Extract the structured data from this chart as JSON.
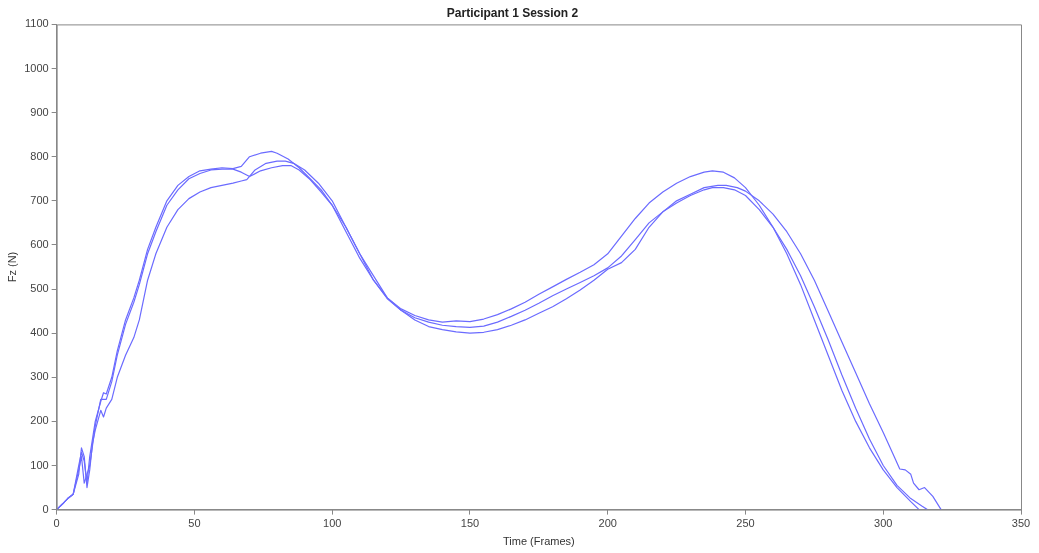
{
  "chart_data": {
    "type": "line",
    "title": "Participant 1 Session 2",
    "xlabel": "Time (Frames)",
    "ylabel": "Fz (N)",
    "xlim": [
      0,
      350
    ],
    "xticks": [
      0,
      50,
      100,
      150,
      200,
      250,
      300,
      350
    ],
    "ylim": [
      0,
      1100
    ],
    "yticks": [
      0,
      100,
      200,
      300,
      400,
      500,
      600,
      700,
      800,
      900,
      1000,
      1100
    ],
    "grid": false,
    "legend": false,
    "marker": "none",
    "line_style": "solid",
    "series": [
      {
        "color": "#6b6bff",
        "x": [
          0,
          2,
          4,
          6,
          8,
          9,
          10,
          11,
          12,
          14,
          16,
          17,
          18,
          20,
          22,
          25,
          28,
          30,
          33,
          36,
          40,
          44,
          48,
          52,
          56,
          60,
          64,
          67,
          70,
          74,
          78,
          80,
          84,
          88,
          92,
          96,
          100,
          105,
          110,
          115,
          120,
          125,
          130,
          135,
          140,
          145,
          150,
          155,
          160,
          165,
          170,
          175,
          180,
          185,
          190,
          195,
          200,
          205,
          210,
          215,
          220,
          225,
          230,
          235,
          238,
          242,
          246,
          250,
          255,
          260,
          265,
          270,
          275,
          280,
          285,
          290,
          295,
          300,
          305,
          310,
          313
        ],
        "values": [
          0,
          12,
          25,
          35,
          100,
          130,
          110,
          60,
          120,
          200,
          245,
          265,
          262,
          300,
          360,
          430,
          480,
          520,
          590,
          640,
          700,
          735,
          755,
          768,
          772,
          775,
          773,
          778,
          800,
          808,
          812,
          808,
          795,
          775,
          750,
          725,
          690,
          630,
          570,
          520,
          480,
          455,
          440,
          430,
          425,
          428,
          426,
          432,
          442,
          455,
          470,
          488,
          505,
          522,
          538,
          555,
          580,
          620,
          660,
          695,
          720,
          740,
          755,
          765,
          768,
          765,
          752,
          730,
          690,
          640,
          580,
          510,
          430,
          350,
          270,
          200,
          140,
          90,
          50,
          18,
          0
        ]
      },
      {
        "color": "#6b6bff",
        "x": [
          0,
          2,
          4,
          6,
          8,
          9,
          10,
          11,
          12,
          14,
          16,
          18,
          20,
          22,
          25,
          28,
          30,
          33,
          36,
          40,
          44,
          48,
          52,
          56,
          60,
          64,
          67,
          70,
          74,
          78,
          82,
          85,
          88,
          92,
          96,
          100,
          105,
          110,
          115,
          120,
          125,
          130,
          135,
          140,
          145,
          150,
          155,
          160,
          165,
          170,
          175,
          180,
          185,
          190,
          195,
          200,
          205,
          210,
          215,
          220,
          225,
          230,
          235,
          238,
          242,
          246,
          250,
          255,
          260,
          265,
          270,
          275,
          280,
          285,
          290,
          295,
          300,
          305,
          310,
          314,
          316
        ],
        "values": [
          0,
          12,
          25,
          35,
          90,
          120,
          60,
          80,
          100,
          190,
          250,
          250,
          290,
          350,
          420,
          470,
          510,
          580,
          630,
          690,
          725,
          750,
          762,
          770,
          772,
          772,
          765,
          755,
          768,
          775,
          780,
          780,
          770,
          748,
          720,
          690,
          640,
          580,
          530,
          480,
          452,
          435,
          425,
          418,
          415,
          413,
          416,
          425,
          438,
          452,
          468,
          485,
          500,
          515,
          530,
          548,
          575,
          612,
          650,
          675,
          695,
          712,
          725,
          730,
          730,
          725,
          712,
          680,
          640,
          590,
          530,
          460,
          385,
          305,
          230,
          160,
          100,
          55,
          25,
          8,
          0
        ]
      },
      {
        "color": "#6b6bff",
        "x": [
          0,
          2,
          4,
          6,
          8,
          9,
          10,
          11,
          12,
          13,
          14,
          16,
          17,
          18,
          20,
          22,
          25,
          28,
          30,
          33,
          36,
          40,
          44,
          48,
          52,
          56,
          60,
          64,
          67,
          69,
          72,
          76,
          80,
          83,
          86,
          90,
          95,
          100,
          105,
          110,
          115,
          120,
          125,
          130,
          135,
          140,
          145,
          150,
          155,
          160,
          165,
          170,
          175,
          180,
          185,
          190,
          195,
          200,
          205,
          210,
          215,
          220,
          225,
          230,
          235,
          240,
          243,
          247,
          250,
          255,
          260,
          265,
          270,
          275,
          280,
          285,
          290,
          295,
          300,
          304,
          306,
          308,
          310,
          311,
          313,
          315,
          318,
          321
        ],
        "values": [
          0,
          12,
          25,
          35,
          80,
          140,
          120,
          50,
          90,
          150,
          180,
          225,
          210,
          230,
          250,
          300,
          350,
          390,
          430,
          520,
          580,
          640,
          680,
          705,
          720,
          730,
          735,
          740,
          745,
          748,
          770,
          785,
          790,
          790,
          785,
          770,
          740,
          700,
          640,
          580,
          520,
          478,
          452,
          430,
          415,
          408,
          403,
          400,
          402,
          408,
          418,
          430,
          445,
          460,
          478,
          498,
          520,
          545,
          560,
          590,
          640,
          675,
          700,
          715,
          730,
          735,
          735,
          730,
          722,
          700,
          670,
          630,
          580,
          520,
          450,
          380,
          310,
          240,
          175,
          120,
          92,
          90,
          80,
          60,
          45,
          50,
          30,
          0
        ]
      }
    ]
  }
}
